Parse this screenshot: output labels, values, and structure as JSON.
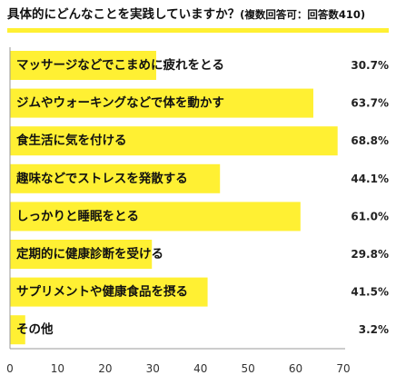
{
  "chart_data": {
    "type": "bar",
    "orientation": "horizontal",
    "title": "具体的にどんなことを実践していますか？",
    "subtitle": "(複数回答可：回答数410)",
    "categories": [
      "マッサージなどでこまめに疲れをとる",
      "ジムやウォーキングなどで体を動かす",
      "食生活に気を付ける",
      "趣味などでストレスを発散する",
      "しっかりと睡眠をとる",
      "定期的に健康診断を受ける",
      "サプリメントや健康食品を摂る",
      "その他"
    ],
    "values": [
      30.7,
      63.7,
      68.8,
      44.1,
      61.0,
      29.8,
      41.5,
      3.2
    ],
    "value_labels": [
      "30.7%",
      "63.7%",
      "68.8%",
      "44.1%",
      "61.0%",
      "29.8%",
      "41.5%",
      "3.2%"
    ],
    "xlim": [
      0,
      70
    ],
    "xticks": [
      0,
      10,
      20,
      30,
      40,
      50,
      60,
      70
    ],
    "grid": false,
    "legend": "none"
  },
  "colors": {
    "bar": "#FFF033",
    "title_underline": "#FFF033"
  }
}
